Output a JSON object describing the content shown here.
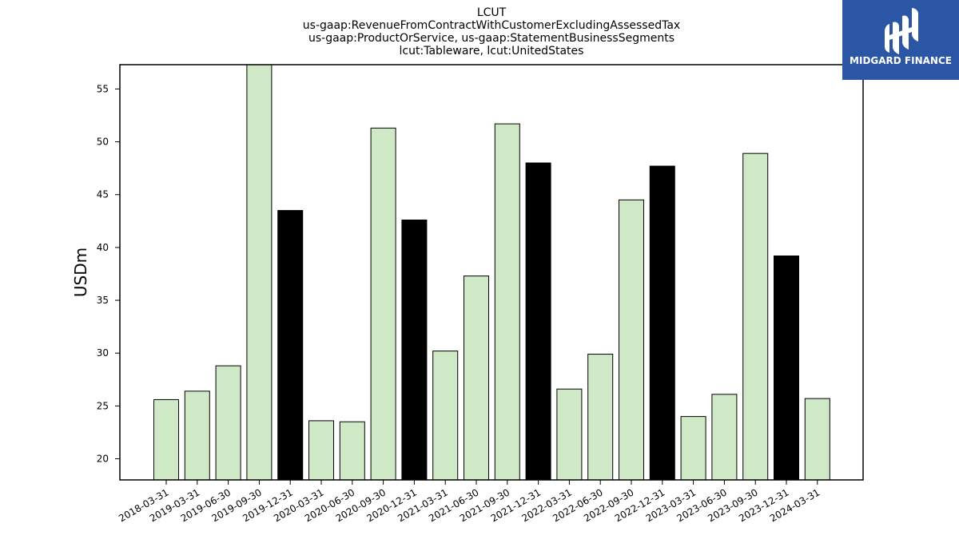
{
  "chart_data": {
    "type": "bar",
    "title_lines": [
      "LCUT",
      "us-gaap:RevenueFromContractWithCustomerExcludingAssessedTax",
      "us-gaap:ProductOrService, us-gaap:StatementBusinessSegments",
      "lcut:Tableware, lcut:UnitedStates"
    ],
    "ylabel": "USDm",
    "ylim": [
      18,
      57.3
    ],
    "yticks": [
      20,
      25,
      30,
      35,
      40,
      45,
      50,
      55
    ],
    "categories": [
      "2018-03-31",
      "2019-03-31",
      "2019-06-30",
      "2019-09-30",
      "2019-12-31",
      "2020-03-31",
      "2020-06-30",
      "2020-09-30",
      "2020-12-31",
      "2021-03-31",
      "2021-06-30",
      "2021-09-30",
      "2021-12-31",
      "2022-03-31",
      "2022-06-30",
      "2022-09-30",
      "2022-12-31",
      "2023-03-31",
      "2023-06-30",
      "2023-09-30",
      "2023-12-31",
      "2024-03-31"
    ],
    "values": [
      25.6,
      26.4,
      28.8,
      57.3,
      43.5,
      23.6,
      23.5,
      51.3,
      42.6,
      30.2,
      37.3,
      51.7,
      48.0,
      26.6,
      29.9,
      44.5,
      47.7,
      24.0,
      26.1,
      48.9,
      39.2,
      25.7
    ],
    "bar_colors": [
      "#cfe9c6",
      "#cfe9c6",
      "#cfe9c6",
      "#cfe9c6",
      "#000000",
      "#cfe9c6",
      "#cfe9c6",
      "#cfe9c6",
      "#000000",
      "#cfe9c6",
      "#cfe9c6",
      "#cfe9c6",
      "#000000",
      "#cfe9c6",
      "#cfe9c6",
      "#cfe9c6",
      "#000000",
      "#cfe9c6",
      "#cfe9c6",
      "#cfe9c6",
      "#000000",
      "#cfe9c6"
    ],
    "grid": false
  },
  "logo": {
    "text": "MIDGARD FINANCE",
    "background": "#2b56a6"
  }
}
